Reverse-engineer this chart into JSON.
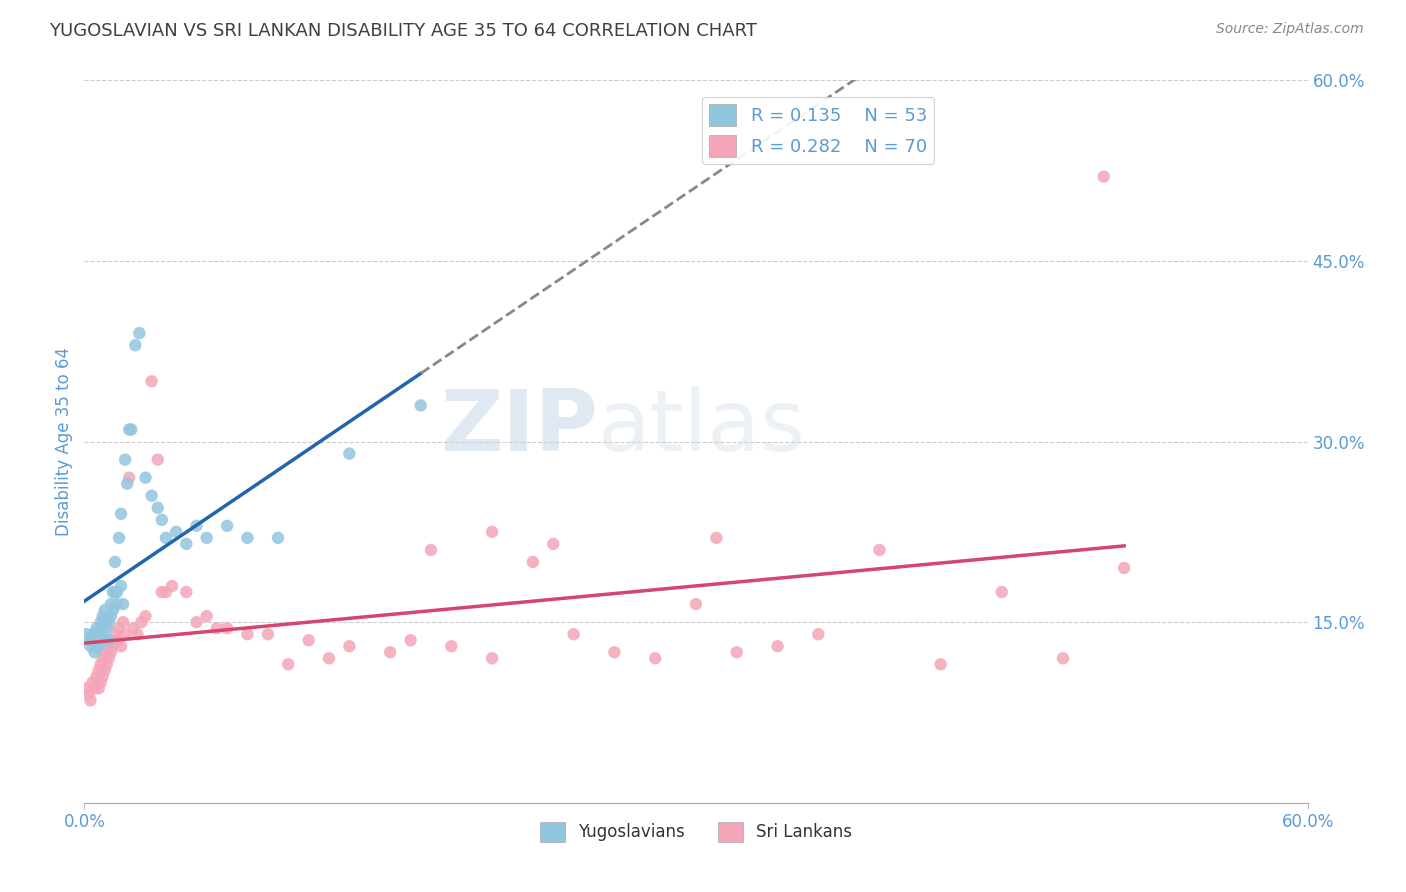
{
  "title": "YUGOSLAVIAN VS SRI LANKAN DISABILITY AGE 35 TO 64 CORRELATION CHART",
  "source": "Source: ZipAtlas.com",
  "ylabel": "Disability Age 35 to 64",
  "xlim": [
    0.0,
    0.6
  ],
  "ylim": [
    0.0,
    0.6
  ],
  "y_ticks": [
    0.15,
    0.3,
    0.45,
    0.6
  ],
  "y_tick_labels": [
    "15.0%",
    "30.0%",
    "45.0%",
    "60.0%"
  ],
  "legend_r1": "R = 0.135",
  "legend_n1": "N = 53",
  "legend_r2": "R = 0.282",
  "legend_n2": "N = 70",
  "blue_color": "#92c5de",
  "pink_color": "#f4a6b8",
  "blue_line_color": "#2166ac",
  "pink_line_color": "#d6456e",
  "title_color": "#404040",
  "axis_label_color": "#5b9bd5",
  "watermark_zip": "ZIP",
  "watermark_atlas": "atlas",
  "yug_scatter_x": [
    0.001,
    0.002,
    0.003,
    0.004,
    0.005,
    0.005,
    0.006,
    0.006,
    0.007,
    0.007,
    0.008,
    0.008,
    0.009,
    0.009,
    0.01,
    0.01,
    0.01,
    0.011,
    0.011,
    0.012,
    0.012,
    0.013,
    0.013,
    0.014,
    0.014,
    0.015,
    0.015,
    0.016,
    0.016,
    0.017,
    0.018,
    0.018,
    0.019,
    0.02,
    0.021,
    0.022,
    0.023,
    0.025,
    0.027,
    0.03,
    0.033,
    0.036,
    0.038,
    0.04,
    0.045,
    0.05,
    0.055,
    0.06,
    0.07,
    0.08,
    0.095,
    0.13,
    0.165
  ],
  "yug_scatter_y": [
    0.14,
    0.135,
    0.13,
    0.14,
    0.125,
    0.135,
    0.13,
    0.145,
    0.13,
    0.14,
    0.15,
    0.14,
    0.155,
    0.145,
    0.15,
    0.135,
    0.16,
    0.145,
    0.155,
    0.135,
    0.15,
    0.155,
    0.165,
    0.175,
    0.16,
    0.175,
    0.2,
    0.165,
    0.175,
    0.22,
    0.24,
    0.18,
    0.165,
    0.285,
    0.265,
    0.31,
    0.31,
    0.38,
    0.39,
    0.27,
    0.255,
    0.245,
    0.235,
    0.22,
    0.225,
    0.215,
    0.23,
    0.22,
    0.23,
    0.22,
    0.22,
    0.29,
    0.33
  ],
  "sri_scatter_x": [
    0.001,
    0.002,
    0.003,
    0.004,
    0.005,
    0.006,
    0.006,
    0.007,
    0.007,
    0.008,
    0.008,
    0.009,
    0.009,
    0.01,
    0.01,
    0.011,
    0.011,
    0.012,
    0.012,
    0.013,
    0.014,
    0.015,
    0.016,
    0.017,
    0.018,
    0.019,
    0.02,
    0.022,
    0.024,
    0.026,
    0.028,
    0.03,
    0.033,
    0.036,
    0.038,
    0.04,
    0.043,
    0.05,
    0.055,
    0.06,
    0.065,
    0.07,
    0.08,
    0.09,
    0.1,
    0.11,
    0.12,
    0.13,
    0.15,
    0.16,
    0.18,
    0.2,
    0.22,
    0.24,
    0.26,
    0.28,
    0.3,
    0.32,
    0.34,
    0.36,
    0.39,
    0.42,
    0.45,
    0.48,
    0.31,
    0.2,
    0.23,
    0.17,
    0.51,
    0.5
  ],
  "sri_scatter_y": [
    0.095,
    0.09,
    0.085,
    0.1,
    0.095,
    0.105,
    0.1,
    0.095,
    0.11,
    0.1,
    0.115,
    0.105,
    0.12,
    0.11,
    0.125,
    0.115,
    0.13,
    0.12,
    0.135,
    0.125,
    0.13,
    0.14,
    0.135,
    0.145,
    0.13,
    0.15,
    0.14,
    0.27,
    0.145,
    0.14,
    0.15,
    0.155,
    0.35,
    0.285,
    0.175,
    0.175,
    0.18,
    0.175,
    0.15,
    0.155,
    0.145,
    0.145,
    0.14,
    0.14,
    0.115,
    0.135,
    0.12,
    0.13,
    0.125,
    0.135,
    0.13,
    0.12,
    0.2,
    0.14,
    0.125,
    0.12,
    0.165,
    0.125,
    0.13,
    0.14,
    0.21,
    0.115,
    0.175,
    0.12,
    0.22,
    0.225,
    0.215,
    0.21,
    0.195,
    0.52
  ]
}
